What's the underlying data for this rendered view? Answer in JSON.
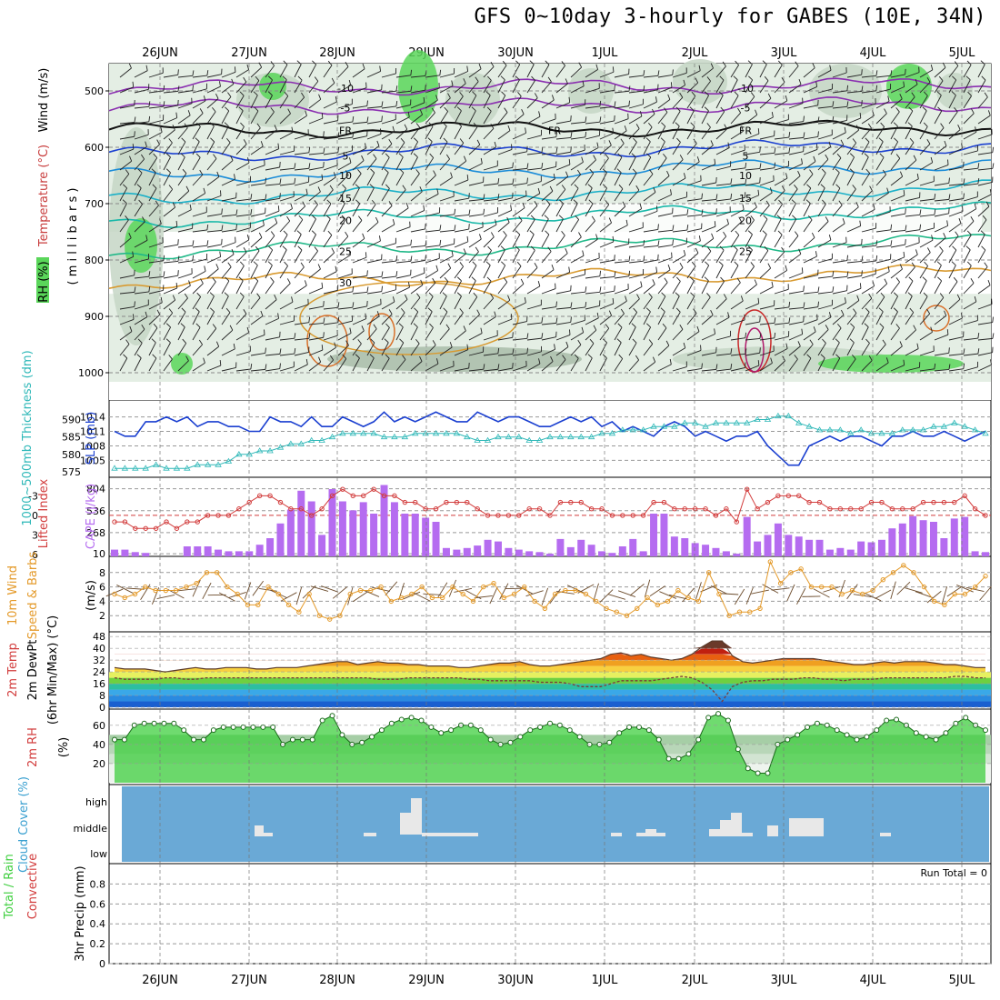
{
  "title": "GFS 0~10day 3-hourly for GABES (10E, 34N)",
  "run_total_label": "Run Total = 0",
  "colors": {
    "rh_light": "#e4eee4",
    "rh_mid": "#c5d6c5",
    "rh_dark": "#a9bca9",
    "rh_green": "#5ad65a",
    "slp": "#1a3fd0",
    "thick": "#2fb8b8",
    "cape": "#b56cf0",
    "li": "#d23c3c",
    "wind10": "#e49a2a",
    "rh2m": "#3fcf3f",
    "cloud_bg": "#6aa9d6",
    "cloud_block": "#e8e8e8"
  },
  "chart_data": [
    {
      "type": "line",
      "name": "upper-air cross section",
      "xlabels": [
        "26JUN",
        "27JUN",
        "28JUN",
        "29JUN",
        "30JUN",
        "1JUL",
        "2JUL",
        "3JUL",
        "4JUL",
        "5JUL"
      ],
      "ylabel_parts": [
        "RH (%)",
        "Temperature",
        "(°C)",
        "Wind",
        "(m/s)",
        "( m i l l i b a r s )"
      ],
      "yticks": [
        "500",
        "600",
        "700",
        "800",
        "900",
        "1000"
      ],
      "isotherms": [
        {
          "label": "-10",
          "color": "#8a2fb0",
          "level": 495,
          "labels": [
            "-10",
            "-10"
          ]
        },
        {
          "label": "-5",
          "color": "#8a2fb0",
          "level": 530,
          "labels": [
            "-5",
            "-5"
          ]
        },
        {
          "label": "FR",
          "color": "#111111",
          "level": 570,
          "labels": [
            "FR",
            "FR",
            "FR"
          ]
        },
        {
          "label": "5",
          "color": "#1a3fd0",
          "level": 615,
          "labels": [
            "5",
            "5"
          ]
        },
        {
          "label": "10",
          "color": "#1a8cd8",
          "level": 650,
          "labels": [
            "10",
            "10"
          ]
        },
        {
          "label": "15",
          "color": "#1ab0c8",
          "level": 690,
          "labels": [
            "15",
            "15"
          ]
        },
        {
          "label": "20",
          "color": "#18b8a8",
          "level": 730,
          "labels": [
            "20",
            "20"
          ]
        },
        {
          "label": "25",
          "color": "#20b888",
          "level": 785,
          "labels": [
            "25",
            "25"
          ]
        },
        {
          "label": "30",
          "color": "#d89a30",
          "level": 840,
          "labels": [
            "30"
          ]
        }
      ]
    },
    {
      "type": "line",
      "name": "SLP and thickness",
      "ylabel_left": "1000~500mb Thickness (dm)",
      "ylabel_right": "SLP (mb)",
      "thick_ticks": [
        "590",
        "585",
        "580",
        "575"
      ],
      "slp_ticks": [
        "1014",
        "1011",
        "1008",
        "1005"
      ],
      "slp": [
        1011,
        1010,
        1010,
        1013,
        1013,
        1014,
        1013,
        1014,
        1012,
        1013,
        1013,
        1012,
        1012,
        1011,
        1011,
        1014,
        1013,
        1013,
        1012,
        1014,
        1012,
        1012,
        1014,
        1013,
        1012,
        1013,
        1015,
        1013,
        1014,
        1013,
        1014,
        1015,
        1014,
        1013,
        1013,
        1015,
        1014,
        1013,
        1014,
        1014,
        1013,
        1012,
        1012,
        1013,
        1014,
        1013,
        1014,
        1012,
        1013,
        1011,
        1012,
        1011,
        1010,
        1012,
        1013,
        1012,
        1010,
        1011,
        1010,
        1009,
        1010,
        1010,
        1011,
        1008,
        1006,
        1004,
        1004,
        1008,
        1009,
        1010,
        1009,
        1010,
        1010,
        1009,
        1008,
        1010,
        1010,
        1011,
        1010,
        1010,
        1011,
        1010,
        1009,
        1010,
        1011
      ],
      "thickness": [
        576,
        576,
        576,
        576,
        577,
        576,
        576,
        576,
        577,
        577,
        577,
        578,
        580,
        580,
        581,
        581,
        582,
        583,
        583,
        584,
        584,
        585,
        586,
        586,
        586,
        586,
        585,
        585,
        585,
        586,
        586,
        586,
        586,
        586,
        585,
        584,
        584,
        585,
        585,
        585,
        584,
        584,
        585,
        585,
        585,
        585,
        585,
        586,
        586,
        587,
        587,
        587,
        588,
        588,
        588,
        589,
        589,
        588,
        589,
        589,
        589,
        589,
        590,
        590,
        591,
        591,
        589,
        588,
        587,
        587,
        587,
        586,
        587,
        586,
        586,
        586,
        587,
        587,
        587,
        588,
        588,
        589,
        588,
        587,
        586
      ]
    },
    {
      "type": "bar",
      "name": "CAPE and lifted index",
      "ylabel_left": "Lifted Index",
      "ylabel_right": "CAPE (J/kg)",
      "li_ticks": [
        "-3",
        "0",
        "3",
        "6"
      ],
      "cape_ticks": [
        "804",
        "536",
        "268",
        "10"
      ],
      "cape": [
        60,
        60,
        30,
        20,
        0,
        0,
        0,
        100,
        100,
        100,
        60,
        40,
        40,
        40,
        120,
        200,
        380,
        550,
        780,
        650,
        240,
        800,
        650,
        540,
        640,
        500,
        850,
        640,
        500,
        500,
        450,
        400,
        80,
        60,
        80,
        110,
        180,
        160,
        80,
        60,
        40,
        30,
        10,
        190,
        90,
        180,
        120,
        40,
        20,
        100,
        190,
        40,
        500,
        500,
        220,
        200,
        140,
        120,
        80,
        40,
        10,
        460,
        160,
        240,
        380,
        240,
        220,
        180,
        180,
        60,
        80,
        60,
        160,
        150,
        180,
        320,
        380,
        470,
        420,
        400,
        200,
        440,
        460,
        40,
        30
      ],
      "lifted_index": [
        1,
        1,
        2,
        2,
        2,
        1,
        2,
        1,
        1,
        0,
        0,
        0,
        -1,
        -2,
        -3,
        -3,
        -2,
        -1,
        -1,
        0,
        -1,
        -3,
        -4,
        -3,
        -3,
        -4,
        -3,
        -3,
        -2,
        -2,
        -1,
        -1,
        -2,
        -2,
        -2,
        -1,
        0,
        0,
        0,
        0,
        -1,
        -1,
        0,
        -2,
        -2,
        -2,
        -1,
        -1,
        0,
        0,
        0,
        0,
        -2,
        -2,
        -1,
        -1,
        -1,
        -1,
        0,
        -1,
        1,
        -4,
        -1,
        -2,
        -3,
        -3,
        -3,
        -2,
        -2,
        -1,
        -1,
        -1,
        -1,
        -2,
        -2,
        -1,
        -1,
        -1,
        -2,
        -2,
        -2,
        -2,
        -3,
        -1,
        0
      ]
    },
    {
      "type": "line",
      "name": "10m wind",
      "ylabel_left": "10m Wind",
      "ylabel_mid": "Speed & Barbs",
      "ylabel_right": "(m/s)",
      "yticks": [
        "8",
        "6",
        "4",
        "2"
      ],
      "speed": [
        5,
        4.5,
        5,
        6,
        5.5,
        5.5,
        5.5,
        6,
        6.5,
        8,
        8,
        6,
        5,
        3.5,
        3.5,
        6,
        5,
        3.5,
        2.5,
        5,
        2,
        1.5,
        2,
        5,
        5.5,
        5.5,
        6,
        4,
        4.5,
        5,
        6,
        4.5,
        4.5,
        6,
        5,
        4,
        6,
        6.5,
        4.5,
        5,
        6,
        4,
        3,
        5,
        5.5,
        5.5,
        5,
        4,
        3,
        2.5,
        2,
        3,
        4.5,
        3.5,
        4,
        5.5,
        4.5,
        4,
        8,
        5,
        2,
        2.5,
        2.5,
        3,
        9.5,
        6.5,
        8,
        8.5,
        6,
        6,
        6,
        5,
        5.5,
        5,
        5.5,
        7,
        8,
        9,
        8,
        6,
        4,
        3.5,
        5,
        5,
        6,
        7.5
      ]
    },
    {
      "type": "area",
      "name": "2m temperature",
      "ylabel_left": "2m Temp",
      "ylabel_mid": "2m DewPt",
      "ylabel_right": "(6hr Min/Max) (°C)",
      "yticks": [
        "48",
        "40",
        "32",
        "24",
        "16",
        "8",
        "0"
      ],
      "temp": [
        27,
        26,
        26,
        26,
        25,
        24,
        25,
        26,
        27,
        26,
        26,
        27,
        27,
        27,
        26,
        26,
        27,
        27,
        27,
        28,
        29,
        30,
        31,
        31,
        29,
        30,
        31,
        30,
        30,
        29,
        29,
        28,
        28,
        28,
        27,
        27,
        28,
        29,
        30,
        30,
        31,
        29,
        28,
        28,
        29,
        30,
        31,
        32,
        33,
        36,
        37,
        35,
        36,
        34,
        33,
        32,
        33,
        36,
        41,
        45,
        45,
        35,
        31,
        30,
        31,
        32,
        33,
        33,
        33,
        33,
        32,
        31,
        30,
        29,
        29,
        30,
        31,
        30,
        31,
        31,
        31,
        30,
        29,
        29,
        28,
        27,
        27
      ],
      "dewpt": [
        20,
        19,
        19,
        19,
        19,
        20,
        20,
        19,
        19,
        20,
        20,
        20,
        20,
        20,
        20,
        20,
        20,
        20,
        20,
        20,
        20,
        20,
        20,
        20,
        20,
        20,
        19,
        19,
        19,
        20,
        20,
        20,
        20,
        20,
        20,
        19,
        19,
        18,
        18,
        18,
        18,
        18,
        17,
        17,
        17,
        16,
        14,
        14,
        14,
        16,
        18,
        18,
        18,
        18,
        19,
        20,
        21,
        20,
        17,
        12,
        4,
        14,
        17,
        18,
        18,
        19,
        19,
        19,
        20,
        20,
        19,
        19,
        18,
        19,
        19,
        19,
        20,
        20,
        20,
        20,
        20,
        20,
        20,
        21,
        21,
        20,
        20
      ]
    },
    {
      "type": "area",
      "name": "2m RH",
      "ylabel_left": "2m RH",
      "ylabel_right": "(%)",
      "yticks": [
        "60",
        "40",
        "20"
      ],
      "rh": [
        45,
        45,
        55,
        60,
        62,
        63,
        62,
        60,
        55,
        50,
        45,
        50,
        55,
        58,
        60,
        59,
        58,
        60,
        58,
        50,
        38,
        40,
        45,
        48,
        45,
        42,
        40,
        55,
        62,
        70,
        62,
        50,
        40,
        40,
        45,
        48,
        55,
        60,
        65,
        68,
        70,
        68,
        62,
        55,
        50,
        55,
        58,
        60,
        62,
        60,
        55,
        50,
        40,
        38,
        40,
        42,
        48,
        55,
        58,
        55,
        45,
        30,
        25,
        25,
        30,
        42,
        62,
        72,
        68,
        45,
        15,
        10,
        8,
        10,
        35,
        50,
        52,
        55,
        60,
        62,
        58,
        55,
        50,
        45,
        42,
        48,
        55,
        62,
        65,
        65,
        60,
        55,
        48,
        45,
        50,
        55,
        62,
        68,
        65,
        60,
        55
      ],
      "rh_obs": [
        45,
        45,
        60,
        62,
        62,
        62,
        62,
        55,
        45,
        45,
        55,
        58,
        58,
        58,
        58,
        58,
        58,
        40,
        45,
        45,
        45,
        65,
        70,
        50,
        40,
        42,
        48,
        55,
        62,
        66,
        68,
        65,
        58,
        52,
        55,
        60,
        60,
        55,
        45,
        40,
        42,
        48,
        55,
        58,
        62,
        60,
        55,
        48,
        40,
        40,
        42,
        52,
        58,
        58,
        55,
        45,
        25,
        25,
        30,
        45,
        68,
        72,
        65,
        35,
        15,
        10,
        10,
        40,
        45,
        50,
        58,
        62,
        60,
        55,
        50,
        45,
        48,
        55,
        65,
        66,
        60,
        52,
        48,
        45,
        52,
        62,
        68,
        60,
        55
      ]
    },
    {
      "type": "bar",
      "name": "cloud cover",
      "ylabel": "Cloud Cover (%)",
      "levels": [
        "high",
        "middle",
        "low"
      ],
      "middle": [
        0,
        0,
        0,
        0,
        0,
        0,
        0,
        0,
        0,
        0,
        0,
        0,
        0,
        0,
        0,
        0,
        0,
        0,
        0,
        0,
        0,
        0,
        0,
        0,
        0,
        0,
        0,
        0,
        0,
        1,
        0.3,
        0.2,
        0,
        0,
        0,
        0,
        0,
        0,
        0,
        0,
        0,
        0,
        0,
        0,
        0,
        0,
        0,
        0,
        0,
        0,
        0,
        0,
        0,
        0,
        0,
        0,
        0,
        0,
        0,
        0,
        0,
        0,
        0,
        0,
        0,
        0,
        0,
        0,
        0,
        0,
        0,
        0,
        0,
        0,
        0,
        0,
        0,
        0,
        0,
        0,
        0,
        0,
        0,
        0
      ],
      "high": [
        0,
        0,
        0,
        0,
        0,
        0,
        0,
        0,
        0,
        0,
        0,
        0,
        0,
        0,
        0,
        0,
        0,
        0,
        0,
        0,
        0,
        0,
        0,
        0,
        0,
        0,
        0,
        0,
        0,
        0.6,
        0,
        0,
        0,
        0,
        0,
        0,
        0,
        0,
        0,
        0,
        0,
        0,
        0,
        0,
        0,
        0,
        0,
        0,
        0,
        0,
        0,
        0,
        0,
        0,
        0,
        0,
        0,
        0,
        0,
        0,
        0,
        0,
        0,
        0,
        0,
        0,
        0,
        0,
        0,
        0,
        0,
        0,
        0,
        0,
        0,
        0,
        0,
        0,
        0,
        0,
        0,
        0,
        0,
        0,
        0
      ]
    },
    {
      "type": "line",
      "name": "3hr precip",
      "ylabel_left": "Total / Rain",
      "ylabel_mid": "Convective",
      "ylabel_right": "3hr Precip (mm)",
      "yticks": [
        "0.8",
        "0.6",
        "0.4",
        "0.2",
        "0"
      ],
      "values": []
    }
  ]
}
